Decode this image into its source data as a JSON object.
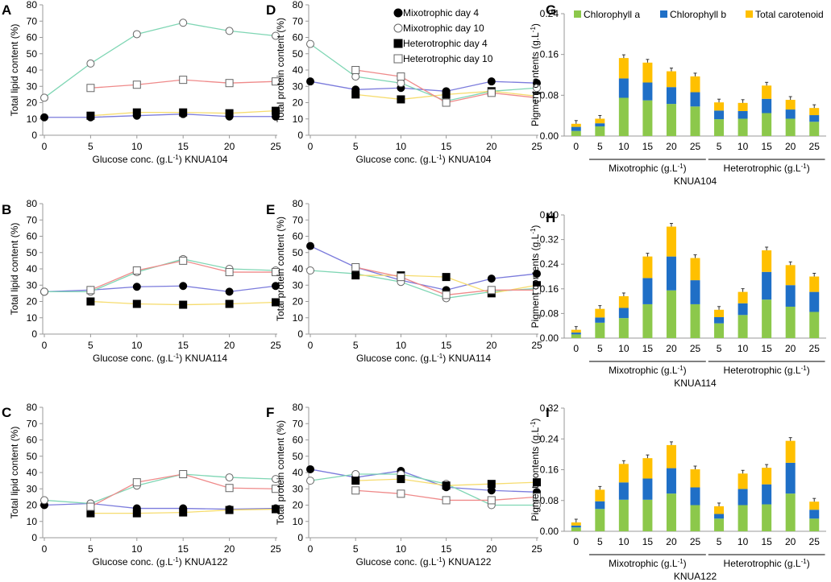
{
  "colors": {
    "mixo_day4_line": "#7b7bdc",
    "mixo_day10_line": "#7fd6b4",
    "hetero_day4_line": "#f6dc6e",
    "hetero_day10_line": "#ef8a8a",
    "chlorophyll_a": "#8cc84b",
    "chlorophyll_b": "#1f6fc6",
    "carotenoid": "#ffc000"
  },
  "strings": {
    "xlabel_prefix": "Glucose conc. (g.L",
    "xlabel_exp": "-1",
    "xlabel_suffix": ") ",
    "pigment_ylabel_main": "Pigment contents (g.L",
    "pigment_ylabel_exp": "-1",
    "pigment_ylabel_end": ")",
    "mixo_group_main": "Mixotrophic (g.L",
    "hetero_group_main": "Heterotrophic (g.L",
    "group_exp": "-1",
    "group_end": ")"
  },
  "legend_lines": [
    "Mixotrophic day 4",
    "Mixotrophic day 10",
    "Heterotrophic day 4",
    "Heterotrophic day 10"
  ],
  "legend_bars": [
    "Chlorophyll a",
    "Chlorophyll b",
    "Total carotenoid"
  ],
  "chart_data": [
    {
      "id": "A",
      "type": "line",
      "panel_label": "A",
      "strain": "KNUA104",
      "ylabel": "Total lipid content (%)",
      "ylim": [
        0,
        80
      ],
      "yticks": [
        0,
        10,
        20,
        30,
        40,
        50,
        60,
        70,
        80
      ],
      "x": [
        0,
        5,
        10,
        15,
        20,
        25
      ],
      "series": [
        {
          "name": "Mixotrophic day 4",
          "values": [
            11,
            11,
            12,
            13,
            11.5,
            11.5
          ]
        },
        {
          "name": "Mixotrophic day 10",
          "values": [
            23,
            44,
            62,
            69,
            64,
            61
          ]
        },
        {
          "name": "Heterotrophic day 4",
          "values": [
            null,
            12,
            14,
            14,
            13.5,
            15
          ]
        },
        {
          "name": "Heterotrophic day 10",
          "values": [
            null,
            29,
            31,
            34,
            32,
            33
          ]
        }
      ]
    },
    {
      "id": "B",
      "type": "line",
      "panel_label": "B",
      "strain": "KNUA114",
      "ylabel": "Total lipid content (%)",
      "ylim": [
        0,
        80
      ],
      "yticks": [
        0,
        10,
        20,
        30,
        40,
        50,
        60,
        70,
        80
      ],
      "x": [
        0,
        5,
        10,
        15,
        20,
        25
      ],
      "series": [
        {
          "name": "Mixotrophic day 4",
          "values": [
            26,
            27,
            29,
            29.5,
            26,
            29.5
          ]
        },
        {
          "name": "Mixotrophic day 10",
          "values": [
            26,
            26,
            38,
            46,
            40,
            39
          ]
        },
        {
          "name": "Heterotrophic day 4",
          "values": [
            null,
            20,
            18.5,
            18,
            18.5,
            19.5
          ]
        },
        {
          "name": "Heterotrophic day 10",
          "values": [
            null,
            27,
            39,
            45,
            38,
            38
          ]
        }
      ]
    },
    {
      "id": "C",
      "type": "line",
      "panel_label": "C",
      "strain": "KNUA122",
      "ylabel": "Total lipid content (%)",
      "ylim": [
        0,
        80
      ],
      "yticks": [
        0,
        10,
        20,
        30,
        40,
        50,
        60,
        70,
        80
      ],
      "x": [
        0,
        5,
        10,
        15,
        20,
        25
      ],
      "series": [
        {
          "name": "Mixotrophic day 4",
          "values": [
            20,
            21,
            18,
            18,
            17.5,
            18
          ]
        },
        {
          "name": "Mixotrophic day 10",
          "values": [
            23,
            21,
            32,
            39,
            37,
            36
          ]
        },
        {
          "name": "Heterotrophic day 4",
          "values": [
            null,
            15,
            15,
            15.5,
            17,
            17.5
          ]
        },
        {
          "name": "Heterotrophic day 10",
          "values": [
            null,
            19,
            34,
            39,
            30.5,
            30
          ]
        }
      ]
    },
    {
      "id": "D",
      "type": "line",
      "panel_label": "D",
      "strain": "KNUA104",
      "ylabel": "Total protein content (%)",
      "ylim": [
        0,
        80
      ],
      "yticks": [
        0,
        10,
        20,
        30,
        40,
        50,
        60,
        70,
        80
      ],
      "x": [
        0,
        5,
        10,
        15,
        20,
        25
      ],
      "series": [
        {
          "name": "Mixotrophic day 4",
          "values": [
            33,
            28,
            29,
            27,
            33,
            32
          ]
        },
        {
          "name": "Mixotrophic day 10",
          "values": [
            56,
            36,
            32,
            21,
            27,
            29
          ]
        },
        {
          "name": "Heterotrophic day 4",
          "values": [
            null,
            25,
            22,
            25,
            27,
            24
          ]
        },
        {
          "name": "Heterotrophic day 10",
          "values": [
            null,
            40,
            36,
            20,
            26,
            23
          ]
        }
      ]
    },
    {
      "id": "E",
      "type": "line",
      "panel_label": "E",
      "strain": "KNUA114",
      "ylabel": "Total protein content (%)",
      "ylim": [
        0,
        80
      ],
      "yticks": [
        0,
        10,
        20,
        30,
        40,
        50,
        60,
        70,
        80
      ],
      "x": [
        0,
        5,
        10,
        15,
        20,
        25
      ],
      "series": [
        {
          "name": "Mixotrophic day 4",
          "values": [
            54,
            41,
            33,
            27,
            34,
            37
          ]
        },
        {
          "name": "Mixotrophic day 10",
          "values": [
            39,
            37,
            32,
            22,
            26,
            28
          ]
        },
        {
          "name": "Heterotrophic day 4",
          "values": [
            null,
            36,
            36,
            35,
            25,
            30
          ]
        },
        {
          "name": "Heterotrophic day 10",
          "values": [
            null,
            41,
            35,
            24,
            27,
            27
          ]
        }
      ]
    },
    {
      "id": "F",
      "type": "line",
      "panel_label": "F",
      "strain": "KNUA122",
      "ylabel": "Total protein content (%)",
      "ylim": [
        0,
        80
      ],
      "yticks": [
        0,
        10,
        20,
        30,
        40,
        50,
        60,
        70,
        80
      ],
      "x": [
        0,
        5,
        10,
        15,
        20,
        25
      ],
      "series": [
        {
          "name": "Mixotrophic day 4",
          "values": [
            42,
            37,
            41,
            31,
            29,
            28
          ]
        },
        {
          "name": "Mixotrophic day 10",
          "values": [
            35,
            39,
            39,
            33,
            20,
            20
          ]
        },
        {
          "name": "Heterotrophic day 4",
          "values": [
            null,
            35,
            36,
            32,
            33,
            34
          ]
        },
        {
          "name": "Heterotrophic day 10",
          "values": [
            null,
            29,
            27,
            23,
            23,
            25
          ]
        }
      ]
    },
    {
      "id": "G",
      "type": "bar",
      "stacked": true,
      "panel_label": "G",
      "strain": "KNUA104",
      "ylim": [
        0,
        0.24
      ],
      "yticks": [
        "0.00",
        "0.08",
        "0.16",
        "0.24"
      ],
      "categories": [
        "0",
        "5",
        "10",
        "15",
        "20",
        "25",
        "5",
        "10",
        "15",
        "20",
        "25"
      ],
      "groups": [
        "Mixotrophic",
        "Heterotrophic"
      ],
      "series": [
        {
          "name": "Chlorophyll a",
          "values": [
            0.01,
            0.019,
            0.075,
            0.07,
            0.063,
            0.058,
            0.033,
            0.034,
            0.045,
            0.034,
            0.028
          ]
        },
        {
          "name": "Chlorophyll b",
          "values": [
            0.008,
            0.006,
            0.038,
            0.035,
            0.033,
            0.028,
            0.017,
            0.015,
            0.028,
            0.018,
            0.013
          ]
        },
        {
          "name": "Total carotenoid",
          "values": [
            0.006,
            0.009,
            0.04,
            0.039,
            0.031,
            0.031,
            0.016,
            0.016,
            0.026,
            0.019,
            0.014
          ]
        }
      ]
    },
    {
      "id": "H",
      "type": "bar",
      "stacked": true,
      "panel_label": "H",
      "strain": "KNUA114",
      "ylim": [
        0,
        0.4
      ],
      "yticks": [
        "0.00",
        "0.08",
        "0.16",
        "0.24",
        "0.32",
        "0.40"
      ],
      "categories": [
        "0",
        "5",
        "10",
        "15",
        "20",
        "25",
        "5",
        "10",
        "15",
        "20",
        "25"
      ],
      "groups": [
        "Mixotrophic",
        "Heterotrophic"
      ],
      "series": [
        {
          "name": "Chlorophyll a",
          "values": [
            0.012,
            0.05,
            0.065,
            0.11,
            0.155,
            0.11,
            0.048,
            0.075,
            0.125,
            0.102,
            0.085
          ]
        },
        {
          "name": "Chlorophyll b",
          "values": [
            0.006,
            0.017,
            0.033,
            0.085,
            0.11,
            0.078,
            0.02,
            0.038,
            0.09,
            0.07,
            0.065
          ]
        },
        {
          "name": "Total carotenoid",
          "values": [
            0.009,
            0.028,
            0.038,
            0.07,
            0.097,
            0.072,
            0.024,
            0.037,
            0.07,
            0.065,
            0.05
          ]
        }
      ]
    },
    {
      "id": "I",
      "type": "bar",
      "stacked": true,
      "panel_label": "I",
      "strain": "KNUA122",
      "ylim": [
        0,
        0.32
      ],
      "yticks": [
        "0.00",
        "0.08",
        "0.16",
        "0.24",
        "0.32"
      ],
      "categories": [
        "0",
        "5",
        "10",
        "15",
        "20",
        "25",
        "5",
        "10",
        "15",
        "20",
        "25"
      ],
      "groups": [
        "Mixotrophic",
        "Heterotrophic"
      ],
      "series": [
        {
          "name": "Chlorophyll a",
          "values": [
            0.01,
            0.058,
            0.082,
            0.082,
            0.098,
            0.068,
            0.033,
            0.068,
            0.07,
            0.098,
            0.033
          ]
        },
        {
          "name": "Chlorophyll b",
          "values": [
            0.005,
            0.02,
            0.045,
            0.055,
            0.066,
            0.046,
            0.012,
            0.042,
            0.052,
            0.08,
            0.023
          ]
        },
        {
          "name": "Total carotenoid",
          "values": [
            0.008,
            0.03,
            0.048,
            0.053,
            0.06,
            0.047,
            0.02,
            0.04,
            0.043,
            0.057,
            0.021
          ]
        }
      ]
    }
  ]
}
